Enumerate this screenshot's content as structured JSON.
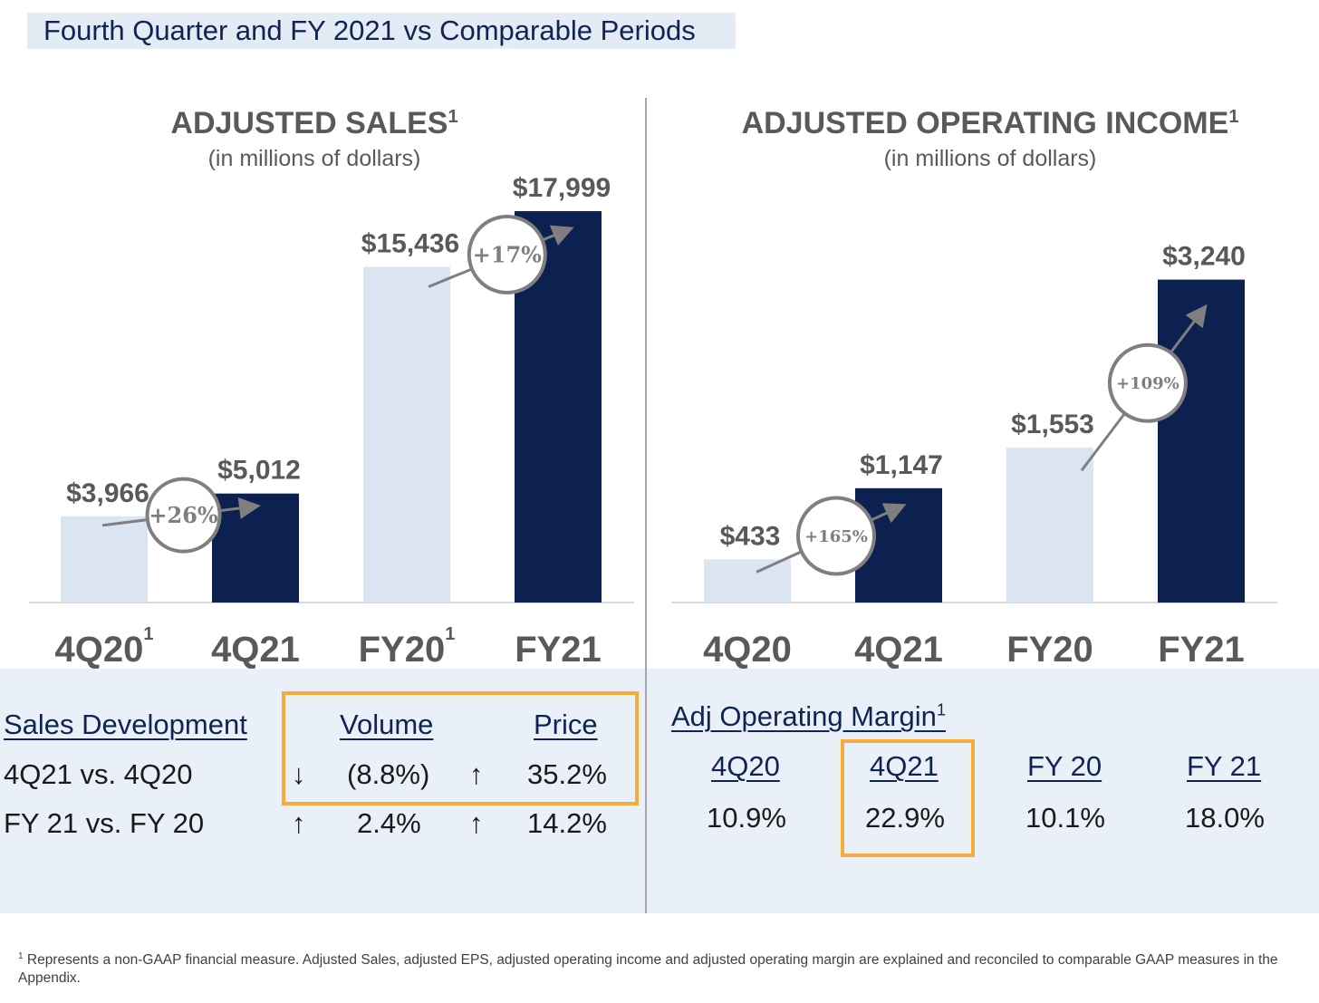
{
  "slide_title": "Fourth Quarter and FY 2021 vs Comparable Periods",
  "colors": {
    "light_bar": "#dbe5f1",
    "dark_bar": "#0c2150",
    "highlight": "#f5ac3a",
    "arrow": "#7f7f7f"
  },
  "chart_data": [
    {
      "type": "bar",
      "title": "ADJUSTED SALES",
      "title_superscript": "1",
      "subtitle": "(in millions of dollars)",
      "categories": [
        "4Q20",
        "4Q21",
        "FY20",
        "FY21"
      ],
      "category_superscripts": [
        "1",
        "",
        "1",
        ""
      ],
      "values": [
        3966,
        5012,
        15436,
        17999
      ],
      "value_labels": [
        "$3,966",
        "$5,012",
        "$15,436",
        "$17,999"
      ],
      "bar_shades": [
        "light",
        "dark",
        "light",
        "dark"
      ],
      "growth": [
        {
          "label": "+26%",
          "from": 0,
          "to": 1
        },
        {
          "label": "+17%",
          "from": 2,
          "to": 3
        }
      ],
      "ylim": [
        0,
        20000
      ],
      "grid": false
    },
    {
      "type": "bar",
      "title": "ADJUSTED OPERATING INCOME",
      "title_superscript": "1",
      "subtitle": "(in millions of dollars)",
      "categories": [
        "4Q20",
        "4Q21",
        "FY20",
        "FY21"
      ],
      "category_superscripts": [
        "",
        "",
        "",
        ""
      ],
      "values": [
        433,
        1147,
        1553,
        3240
      ],
      "value_labels": [
        "$433",
        "$1,147",
        "$1,553",
        "$3,240"
      ],
      "bar_shades": [
        "light",
        "dark",
        "light",
        "dark"
      ],
      "growth": [
        {
          "label": "+165%",
          "from": 0,
          "to": 1
        },
        {
          "label": "+109%",
          "from": 2,
          "to": 3
        }
      ],
      "ylim": [
        0,
        3600
      ],
      "grid": false
    }
  ],
  "sales_development": {
    "heading": "Sales Development",
    "col_volume": "Volume",
    "col_price": "Price",
    "rows": [
      {
        "label": "4Q21 vs. 4Q20",
        "volume_arrow": "↓",
        "volume": "(8.8%)",
        "price_arrow": "↑",
        "price": "35.2%"
      },
      {
        "label": "FY 21 vs. FY 20",
        "volume_arrow": "↑",
        "volume": "2.4%",
        "price_arrow": "↑",
        "price": "14.2%"
      }
    ]
  },
  "operating_margin": {
    "heading": "Adj Operating Margin",
    "heading_superscript": "1",
    "periods": [
      "4Q20",
      "4Q21",
      "FY 20",
      "FY 21"
    ],
    "values": [
      "10.9%",
      "22.9%",
      "10.1%",
      "18.0%"
    ],
    "highlighted": "4Q21"
  },
  "footnote": {
    "marker": "1",
    "text": "Represents a non-GAAP financial measure. Adjusted Sales, adjusted EPS, adjusted operating income and adjusted operating margin are explained and reconciled to comparable GAAP measures in the Appendix."
  }
}
